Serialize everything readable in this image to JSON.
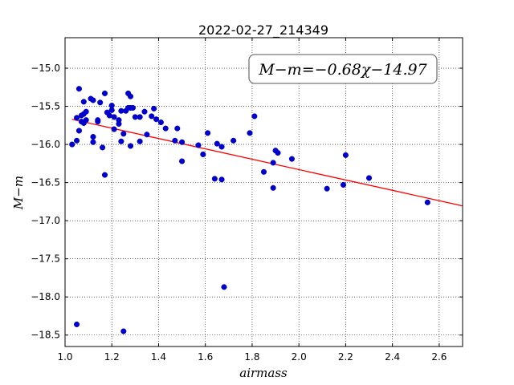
{
  "chart_data": {
    "type": "scatter",
    "title": "2022-02-27_214349",
    "xlabel": "airmass",
    "ylabel": "M−m",
    "xlim": [
      1.0,
      2.7
    ],
    "ylim": [
      -18.65,
      -14.6
    ],
    "y_inverted": true,
    "grid": true,
    "x_ticks": [
      1.0,
      1.2,
      1.4,
      1.6,
      1.8,
      2.0,
      2.2,
      2.4,
      2.6
    ],
    "x_tick_labels": [
      "1.0",
      "1.2",
      "1.4",
      "1.6",
      "1.8",
      "2.0",
      "2.2",
      "2.4",
      "2.6"
    ],
    "y_ticks": [
      -15.0,
      -15.5,
      -16.0,
      -16.5,
      -17.0,
      -17.5,
      -18.0,
      -18.5
    ],
    "y_tick_labels": [
      "−15.0",
      "−15.5",
      "−16.0",
      "−16.5",
      "−17.0",
      "−17.5",
      "−18.0",
      "−18.5"
    ],
    "annotation": "M−m=−0.68χ−14.97",
    "fit": {
      "slope": -0.68,
      "intercept": -14.97,
      "x_range": [
        1.03,
        2.7
      ],
      "color": "#ff0000"
    },
    "point_color": "#0000cc",
    "points": [
      [
        1.03,
        -16.0
      ],
      [
        1.05,
        -15.95
      ],
      [
        1.05,
        -15.65
      ],
      [
        1.06,
        -15.27
      ],
      [
        1.06,
        -15.82
      ],
      [
        1.07,
        -15.7
      ],
      [
        1.07,
        -15.62
      ],
      [
        1.08,
        -15.72
      ],
      [
        1.08,
        -15.6
      ],
      [
        1.08,
        -15.44
      ],
      [
        1.09,
        -15.57
      ],
      [
        1.09,
        -15.68
      ],
      [
        1.11,
        -15.4
      ],
      [
        1.12,
        -15.97
      ],
      [
        1.12,
        -15.42
      ],
      [
        1.12,
        -15.9
      ],
      [
        1.14,
        -15.7
      ],
      [
        1.14,
        -15.68
      ],
      [
        1.15,
        -15.45
      ],
      [
        1.16,
        -16.04
      ],
      [
        1.17,
        -16.4
      ],
      [
        1.17,
        -15.33
      ],
      [
        1.18,
        -15.58
      ],
      [
        1.19,
        -15.62
      ],
      [
        1.2,
        -15.55
      ],
      [
        1.2,
        -15.49
      ],
      [
        1.21,
        -15.8
      ],
      [
        1.21,
        -15.64
      ],
      [
        1.23,
        -15.68
      ],
      [
        1.23,
        -15.73
      ],
      [
        1.24,
        -15.96
      ],
      [
        1.24,
        -15.56
      ],
      [
        1.25,
        -15.86
      ],
      [
        1.26,
        -15.56
      ],
      [
        1.27,
        -15.52
      ],
      [
        1.27,
        -15.33
      ],
      [
        1.28,
        -15.52
      ],
      [
        1.28,
        -16.02
      ],
      [
        1.28,
        -15.37
      ],
      [
        1.29,
        -15.52
      ],
      [
        1.3,
        -15.64
      ],
      [
        1.32,
        -15.64
      ],
      [
        1.32,
        -15.96
      ],
      [
        1.34,
        -15.57
      ],
      [
        1.35,
        -15.87
      ],
      [
        1.37,
        -15.63
      ],
      [
        1.38,
        -15.53
      ],
      [
        1.39,
        -15.67
      ],
      [
        1.41,
        -15.71
      ],
      [
        1.43,
        -15.79
      ],
      [
        1.47,
        -15.95
      ],
      [
        1.48,
        -15.79
      ],
      [
        1.5,
        -15.97
      ],
      [
        1.5,
        -16.22
      ],
      [
        1.57,
        -16.01
      ],
      [
        1.59,
        -16.13
      ],
      [
        1.61,
        -15.85
      ],
      [
        1.64,
        -16.45
      ],
      [
        1.65,
        -15.99
      ],
      [
        1.67,
        -16.03
      ],
      [
        1.67,
        -16.46
      ],
      [
        1.68,
        -17.87
      ],
      [
        1.72,
        -15.95
      ],
      [
        1.79,
        -15.85
      ],
      [
        1.81,
        -15.63
      ],
      [
        1.85,
        -16.36
      ],
      [
        1.89,
        -16.57
      ],
      [
        1.89,
        -16.24
      ],
      [
        1.9,
        -16.08
      ],
      [
        1.91,
        -16.11
      ],
      [
        1.97,
        -16.19
      ],
      [
        2.12,
        -16.58
      ],
      [
        2.19,
        -16.53
      ],
      [
        2.2,
        -16.14
      ],
      [
        2.3,
        -16.44
      ],
      [
        2.55,
        -16.76
      ],
      [
        1.05,
        -18.36
      ],
      [
        1.25,
        -18.45
      ]
    ]
  }
}
